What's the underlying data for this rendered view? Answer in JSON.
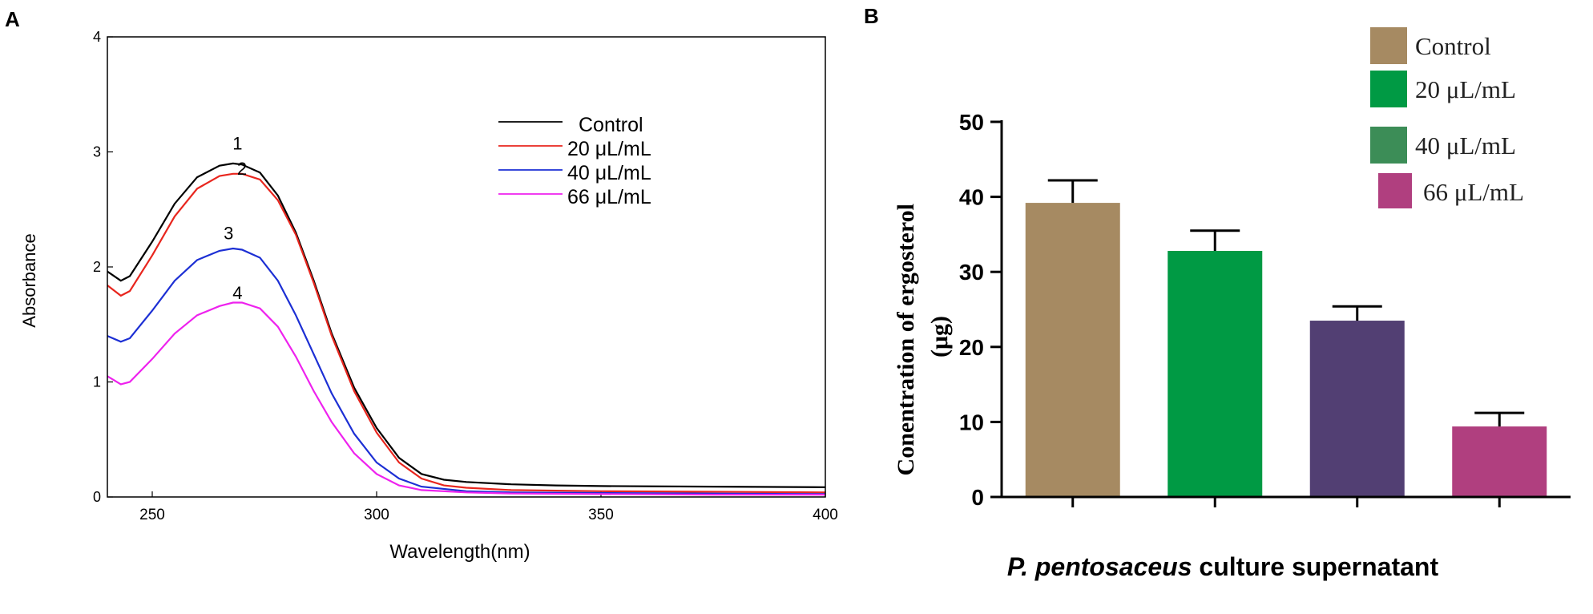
{
  "panels": {
    "a_label": "A",
    "b_label": "B"
  },
  "chart_data": [
    {
      "panel": "A",
      "type": "line",
      "title": "",
      "xlabel": "Wavelength(nm)",
      "ylabel": "Absorbance",
      "xlim": [
        240,
        400
      ],
      "ylim": [
        0,
        4
      ],
      "xticks": [
        250,
        300,
        350,
        400
      ],
      "yticks": [
        0,
        1,
        2,
        3,
        4
      ],
      "series": [
        {
          "name": "Control",
          "peak_label": "1",
          "label_x": 269,
          "label_y": 3.02,
          "color": "#000000",
          "points": [
            [
              240,
              1.96
            ],
            [
              243,
              1.88
            ],
            [
              245,
              1.92
            ],
            [
              250,
              2.22
            ],
            [
              255,
              2.55
            ],
            [
              260,
              2.78
            ],
            [
              265,
              2.88
            ],
            [
              268,
              2.9
            ],
            [
              270,
              2.89
            ],
            [
              274,
              2.82
            ],
            [
              278,
              2.62
            ],
            [
              282,
              2.3
            ],
            [
              286,
              1.88
            ],
            [
              290,
              1.42
            ],
            [
              295,
              0.95
            ],
            [
              300,
              0.6
            ],
            [
              305,
              0.34
            ],
            [
              310,
              0.2
            ],
            [
              315,
              0.15
            ],
            [
              320,
              0.13
            ],
            [
              330,
              0.11
            ],
            [
              340,
              0.1
            ],
            [
              350,
              0.095
            ],
            [
              375,
              0.09
            ],
            [
              400,
              0.085
            ]
          ]
        },
        {
          "name": "20 μL/mL",
          "peak_label": "2",
          "label_x": 270,
          "label_y": 2.8,
          "color": "#e8261e",
          "points": [
            [
              240,
              1.84
            ],
            [
              243,
              1.75
            ],
            [
              245,
              1.79
            ],
            [
              250,
              2.1
            ],
            [
              255,
              2.44
            ],
            [
              260,
              2.68
            ],
            [
              265,
              2.79
            ],
            [
              268,
              2.81
            ],
            [
              270,
              2.81
            ],
            [
              274,
              2.76
            ],
            [
              278,
              2.58
            ],
            [
              282,
              2.28
            ],
            [
              286,
              1.86
            ],
            [
              290,
              1.4
            ],
            [
              295,
              0.92
            ],
            [
              300,
              0.56
            ],
            [
              305,
              0.3
            ],
            [
              310,
              0.16
            ],
            [
              315,
              0.1
            ],
            [
              320,
              0.08
            ],
            [
              330,
              0.06
            ],
            [
              350,
              0.05
            ],
            [
              375,
              0.045
            ],
            [
              400,
              0.04
            ]
          ]
        },
        {
          "name": "40 μL/mL",
          "peak_label": "3",
          "label_x": 267,
          "label_y": 2.24,
          "color": "#1c2fd4",
          "points": [
            [
              240,
              1.4
            ],
            [
              243,
              1.35
            ],
            [
              245,
              1.38
            ],
            [
              250,
              1.62
            ],
            [
              255,
              1.88
            ],
            [
              260,
              2.06
            ],
            [
              265,
              2.14
            ],
            [
              268,
              2.16
            ],
            [
              270,
              2.15
            ],
            [
              274,
              2.08
            ],
            [
              278,
              1.88
            ],
            [
              282,
              1.58
            ],
            [
              286,
              1.24
            ],
            [
              290,
              0.9
            ],
            [
              295,
              0.55
            ],
            [
              300,
              0.3
            ],
            [
              305,
              0.16
            ],
            [
              310,
              0.09
            ],
            [
              320,
              0.05
            ],
            [
              330,
              0.04
            ],
            [
              350,
              0.035
            ],
            [
              375,
              0.03
            ],
            [
              400,
              0.025
            ]
          ]
        },
        {
          "name": "66 μL/mL",
          "peak_label": "4",
          "label_x": 269,
          "label_y": 1.72,
          "color": "#ee22ee",
          "points": [
            [
              240,
              1.05
            ],
            [
              243,
              0.98
            ],
            [
              245,
              1.0
            ],
            [
              250,
              1.2
            ],
            [
              255,
              1.42
            ],
            [
              260,
              1.58
            ],
            [
              265,
              1.66
            ],
            [
              268,
              1.69
            ],
            [
              270,
              1.69
            ],
            [
              274,
              1.64
            ],
            [
              278,
              1.48
            ],
            [
              282,
              1.22
            ],
            [
              286,
              0.92
            ],
            [
              290,
              0.65
            ],
            [
              295,
              0.38
            ],
            [
              300,
              0.2
            ],
            [
              305,
              0.1
            ],
            [
              310,
              0.06
            ],
            [
              320,
              0.04
            ],
            [
              330,
              0.03
            ],
            [
              350,
              0.025
            ],
            [
              375,
              0.02
            ],
            [
              400,
              0.02
            ]
          ]
        }
      ]
    },
    {
      "panel": "B",
      "type": "bar",
      "title": "",
      "xlabel_italic": "P. pentosaceus",
      "xlabel_rest": " culture supernatant",
      "ylabel_line1": "Conentration of ergosterol",
      "ylabel_line2": "(μg)",
      "ylim": [
        0,
        50
      ],
      "yticks": [
        0,
        10,
        20,
        30,
        40,
        50
      ],
      "categories": [
        "Control",
        "20 μL/mL",
        "40 μL/mL",
        "66 μL/mL"
      ],
      "values": [
        39.2,
        32.8,
        23.5,
        9.4
      ],
      "errors": [
        3.0,
        2.7,
        1.9,
        1.8
      ],
      "bar_colors": [
        "#a68a62",
        "#009a44",
        "#523f73",
        "#b03f7f"
      ],
      "legend_colors": [
        "#a68a62",
        "#009a44",
        "#3c8d57",
        "#b03f7f"
      ]
    }
  ]
}
